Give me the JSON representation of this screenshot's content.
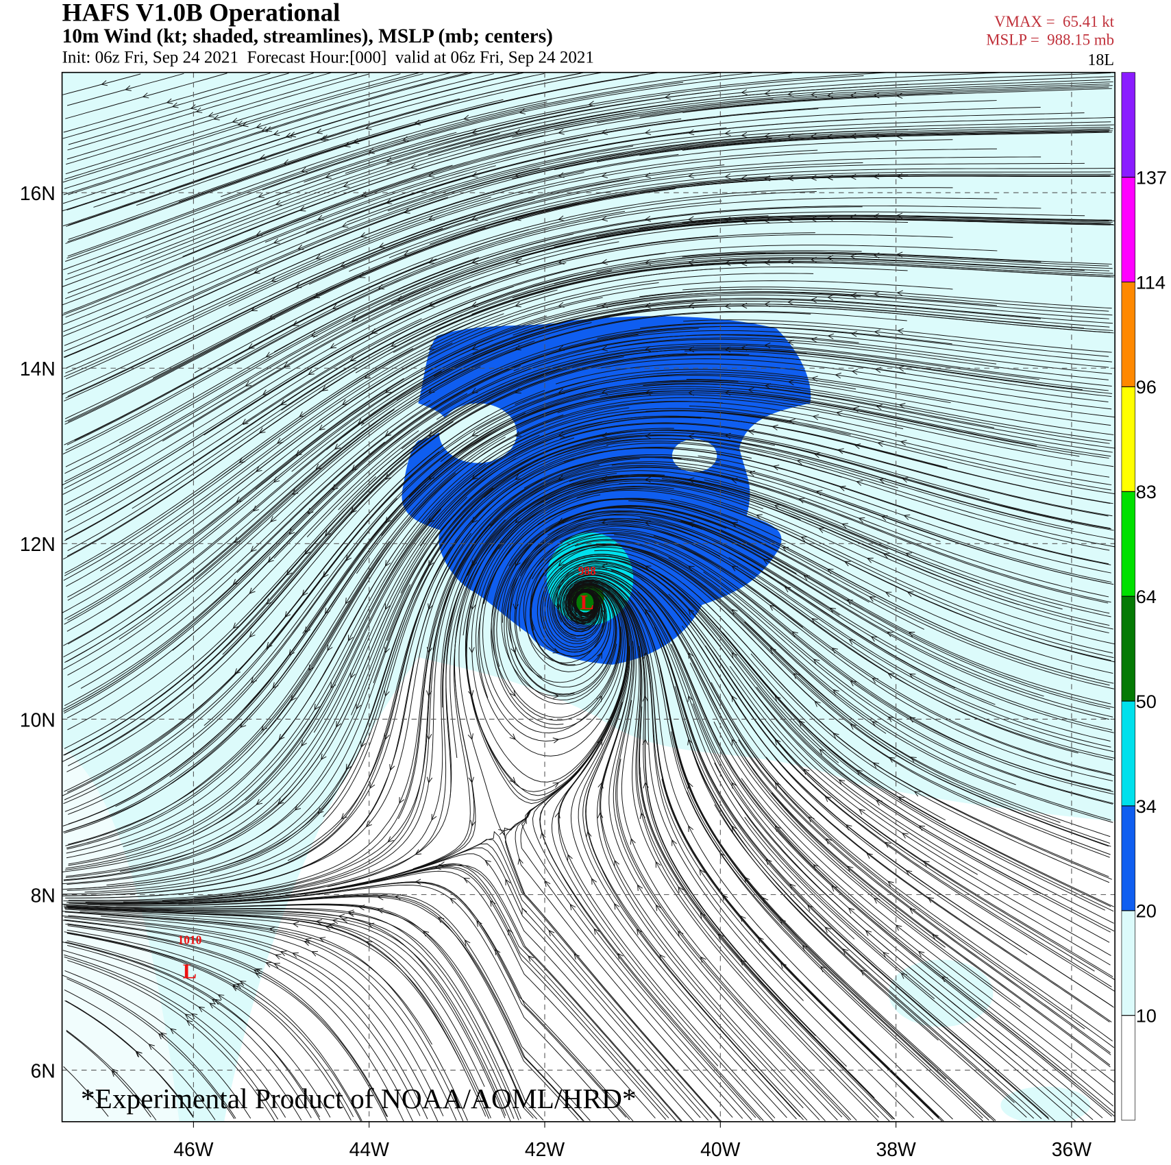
{
  "header": {
    "title": "HAFS V1.0B Operational",
    "subtitle": "10m Wind (kt; shaded, streamlines), MSLP (mb; centers)",
    "init": "Init: 06z Fri, Sep 24 2021  Forecast Hour:[000]  valid at 06z Fri, Sep 24 2021",
    "vmax": "VMAX =  65.41 kt",
    "mslp": "MSLP =  988.15 mb",
    "storm_id": "18L"
  },
  "map": {
    "lat_ticks": [
      {
        "value": 16,
        "label": "16N"
      },
      {
        "value": 14,
        "label": "14N"
      },
      {
        "value": 12,
        "label": "12N"
      },
      {
        "value": 10,
        "label": "10N"
      },
      {
        "value": 8,
        "label": "8N"
      },
      {
        "value": 6,
        "label": "6N"
      }
    ],
    "lon_ticks": [
      {
        "value": -46,
        "label": "46W"
      },
      {
        "value": -44,
        "label": "44W"
      },
      {
        "value": -42,
        "label": "42W"
      },
      {
        "value": -40,
        "label": "40W"
      },
      {
        "value": -38,
        "label": "38W"
      },
      {
        "value": -36,
        "label": "36W"
      }
    ],
    "centers": [
      {
        "pressure": 988,
        "symbol": "L"
      },
      {
        "pressure": 1010,
        "symbol": "L"
      }
    ],
    "watermark": "*Experimental Product of NOAA/AOML/HRD*"
  },
  "colorbar": {
    "levels": [
      10,
      20,
      34,
      50,
      64,
      83,
      96,
      114,
      137
    ],
    "colors": [
      "#ffffff",
      "#dcfbfb",
      "#0f5ef0",
      "#00e0ec",
      "#057a05",
      "#00e000",
      "#ffff00",
      "#ff8800",
      "#ff00ff",
      "#8a1cff"
    ]
  }
}
